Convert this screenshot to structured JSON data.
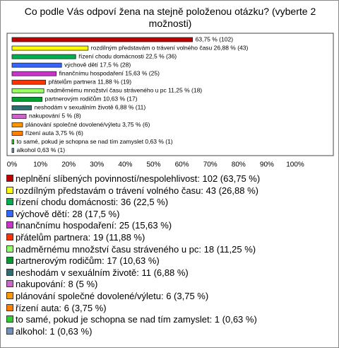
{
  "chart_data": {
    "type": "hbar",
    "title": "Co podle Vás odpoví žena na stejně položenou otázku? (vyberte 2 možnosti)",
    "categories": [
      "neplnění slíbených povinností/nespolehlivost: 102 (63,75 %)",
      "rozdílným představám o trávení volného času: 43 (26,88 %)",
      "řízení chodu domácnosti: 36 (22,5 %)",
      "výchově dětí: 28 (17,5 %)",
      "finančnímu hospodaření: 25 (15,63 %)",
      "přátelům partnera: 19 (11,88 %)",
      "nadměrnému množství času stráveného u pc: 18 (11,25 %)",
      "partnerovým rodičům: 17 (10,63 %)",
      "neshodám v sexuálním životě: 11 (6,88 %)",
      "nakupování: 8 (5 %)",
      "plánování společné dovolené/výletu: 6 (3,75 %)",
      "řízení auta: 6 (3,75 %)",
      "to samé, pokud je schopna se nad tím zamyslet: 1 (0,63 %)",
      "alkohol: 1 (0,63 %)"
    ],
    "values": [
      63.75,
      26.88,
      22.5,
      17.5,
      15.63,
      11.88,
      11.25,
      10.63,
      6.88,
      5,
      3.75,
      3.75,
      0.63,
      0.63
    ],
    "value_labels": [
      "63,75 % (102)",
      "rozdílným představám o trávení volného času 26,88 % (43)",
      "řízení chodu domácnosti 22,5 % (36)",
      "výchově dětí 17,5 % (28)",
      "finančnímu hospodaření 15,63 % (25)",
      "přátelům partnera 11,88 % (19)",
      "nadměrnému množství času stráveného u pc 11,25 % (18)",
      "partnerovým rodičům 10,63 % (17)",
      "neshodám v sexuálním životě 6,88 % (11)",
      "nakupování 5 % (8)",
      "plánování společné dovolené/výletu 3,75 % (6)",
      "řízení auta 3,75 % (6)",
      "to samé, pokud je schopna se nad tím zamyslet 0,63 % (1)",
      "alkohol 0,63 % (1)"
    ],
    "colors": [
      "#c00000",
      "#ffff00",
      "#00b050",
      "#3366ff",
      "#cc33cc",
      "#ff3300",
      "#99ff66",
      "#00a030",
      "#2f6f6f",
      "#cc66cc",
      "#ff9900",
      "#ff8000",
      "#33cc33",
      "#6f8fbf"
    ],
    "xlim": [
      0,
      100
    ],
    "xticks": [
      {
        "value": 0,
        "label": "0%"
      },
      {
        "value": 10,
        "label": "10%"
      },
      {
        "value": 20,
        "label": "20%"
      },
      {
        "value": 30,
        "label": "30%"
      },
      {
        "value": 40,
        "label": "40%"
      },
      {
        "value": 50,
        "label": "50%"
      },
      {
        "value": 60,
        "label": "60%"
      },
      {
        "value": 70,
        "label": "70%"
      },
      {
        "value": 80,
        "label": "80%"
      },
      {
        "value": 90,
        "label": "90%"
      },
      {
        "value": 100,
        "label": "100%"
      }
    ]
  }
}
